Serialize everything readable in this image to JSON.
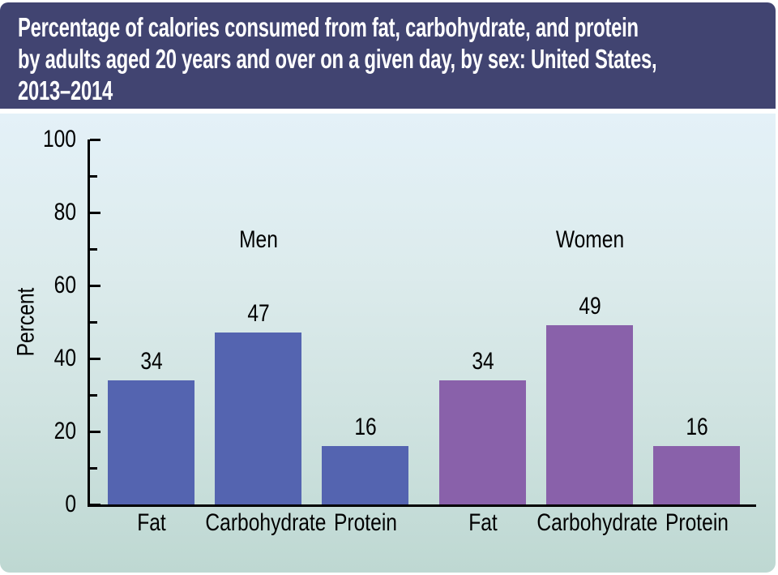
{
  "header": {
    "title": "Percentage of calories consumed from fat, carbohydrate, and protein by adults aged 20 years and over on a given day, by sex: United States, 2013–2014",
    "title_lines": [
      "Percentage of calories consumed from fat, carbohydrate, and protein",
      "by adults aged 20 years and over on a given day, by sex: United States,",
      "2013–2014"
    ],
    "bg_color": "#414471",
    "text_color": "#ffffff"
  },
  "chart_data": {
    "type": "bar",
    "title": "Percentage of calories consumed from fat, carbohydrate, and protein by adults aged 20 years and over on a given day, by sex: United States, 2013–2014",
    "xlabel": "",
    "ylabel": "Percent",
    "ylim": [
      0,
      100
    ],
    "yticks_major": [
      0,
      20,
      40,
      60,
      80,
      100
    ],
    "yticks_minor": [
      10,
      30,
      50,
      70,
      90
    ],
    "grid": false,
    "legend_position": "group-labels-above-bars",
    "categories": [
      "Fat",
      "Carbohydrate",
      "Protein"
    ],
    "series": [
      {
        "name": "Men",
        "values": [
          34,
          47,
          16
        ],
        "color": "#5464b0"
      },
      {
        "name": "Women",
        "values": [
          34,
          49,
          16
        ],
        "color": "#8961aa"
      }
    ],
    "value_labels": [
      [
        34,
        47,
        16
      ],
      [
        34,
        49,
        16
      ]
    ],
    "colors": {
      "axis": "#000000",
      "text": "#000000",
      "panel_gradient_top": "#e4f1f8",
      "panel_gradient_bottom": "#bed8d2"
    }
  }
}
